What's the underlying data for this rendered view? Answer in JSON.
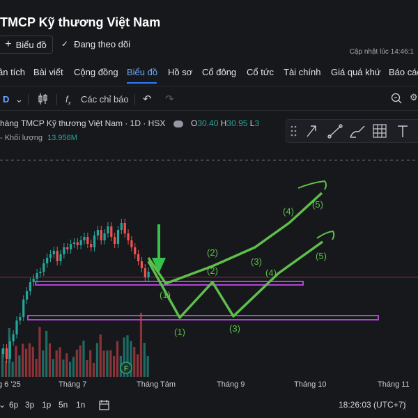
{
  "header": {
    "title": "TMCP Kỹ thương Việt Nam",
    "chart_button": "Biểu đồ",
    "follow_button": "Đang theo dõi",
    "updated": "Cập nhật lúc  14:46:1"
  },
  "nav": {
    "tabs": [
      "ân tích",
      "Bài viết",
      "Cộng đồng",
      "Biểu đồ",
      "Hồ sơ",
      "Cổ đông",
      "Cổ tức",
      "Tài chính",
      "Giá quá khứ",
      "Báo các"
    ],
    "active": "Biểu đồ"
  },
  "toolbar": {
    "interval": "D",
    "indicators_label": "Các chỉ báo"
  },
  "legend": {
    "symbol": "hàng TMCP Kỹ thương Việt Nam · 1D · HSX",
    "open_label": "O",
    "open": "30.40",
    "high_label": "H",
    "high": "30.95",
    "low_label": "L",
    "low": "3",
    "volume_label": "- Khối lượng",
    "volume": "13.956M"
  },
  "chart": {
    "x_ticks": [
      "g 6 '25",
      "Tháng 7",
      "Tháng Tám",
      "Tháng 9",
      "Tháng 10",
      "Tháng 11"
    ],
    "wave_labels_upper": [
      "(1)",
      "(2)",
      "(3)",
      "(4)",
      "(5)"
    ],
    "wave_labels_lower": [
      "(1)",
      "(2)",
      "(3)",
      "(4)",
      "(5)"
    ],
    "event_badge": "F",
    "colors": {
      "up": "#26a69a",
      "down": "#ef5350",
      "wave": "#5fbf4b",
      "box": "#b044d8",
      "arrow": "#35c24a"
    }
  },
  "bottom": {
    "ranges": [
      "6p",
      "3p",
      "1p",
      "5n",
      "1n"
    ],
    "time": "18:26:03 (UTC+7)"
  }
}
